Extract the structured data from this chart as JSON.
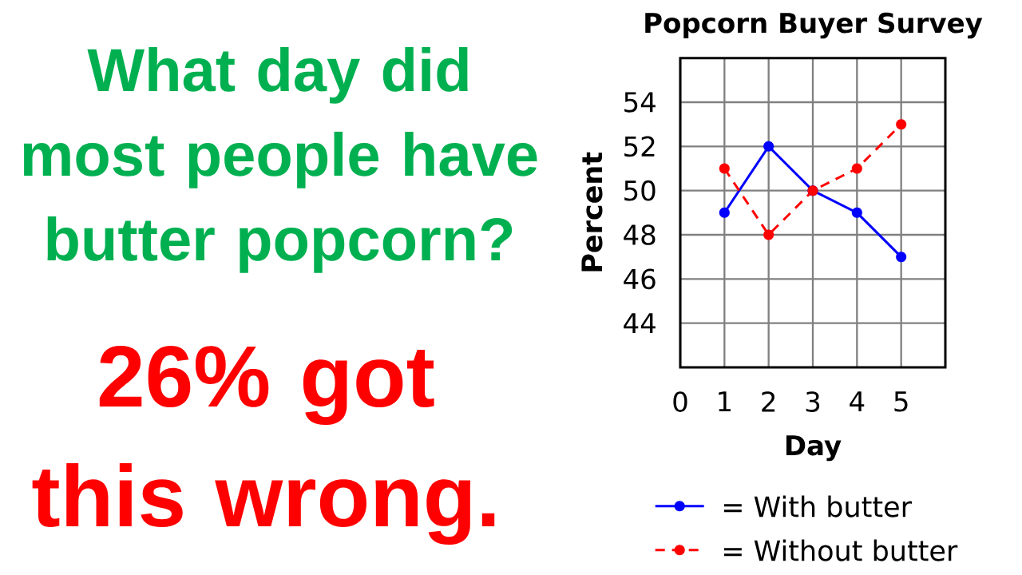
{
  "chart_data": {
    "type": "line",
    "title": "Popcorn Buyer Survey",
    "xlabel": "Day",
    "ylabel": "Percent",
    "x": [
      1,
      2,
      3,
      4,
      5
    ],
    "series": [
      {
        "name": "= With butter",
        "color": "#0000ff",
        "values": [
          49,
          52,
          50,
          49,
          47
        ],
        "line_style": "solid"
      },
      {
        "name": "= Without butter",
        "color": "#ff0000",
        "values": [
          51,
          48,
          50,
          51,
          53
        ],
        "line_style": "dashed"
      }
    ],
    "xlim": [
      0,
      6
    ],
    "ylim": [
      42,
      56
    ],
    "xticks": [
      0,
      1,
      2,
      3,
      4,
      5
    ],
    "yticks": [
      44,
      46,
      48,
      50,
      52,
      54
    ],
    "grid": true,
    "legend": "bottom",
    "marker": "circle",
    "annotations": [
      "What day did most people have butter popcorn?",
      "26% got this wrong."
    ]
  }
}
